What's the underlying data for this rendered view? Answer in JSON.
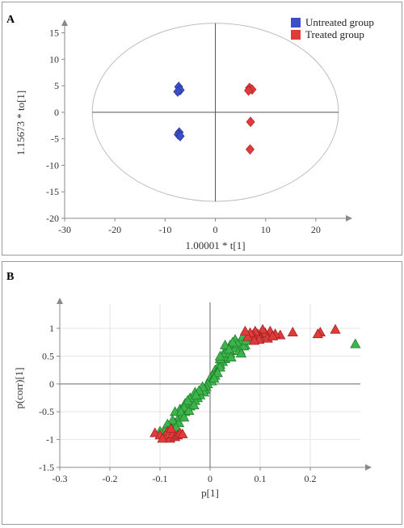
{
  "panels": [
    {
      "letter": "A",
      "chart_data": {
        "type": "scatter",
        "title": "",
        "xlabel": "1.00001 * t[1]",
        "ylabel": "1.15673 * to[1]",
        "xlim": [
          -30,
          25
        ],
        "ylim": [
          -20,
          16
        ],
        "xticks": [
          -30,
          -20,
          -10,
          0,
          10,
          20
        ],
        "yticks": [
          -20,
          -15,
          -10,
          -5,
          0,
          5,
          10,
          15
        ],
        "grid": false,
        "legend": "top-right",
        "ellipse": {
          "rx": 24.5,
          "ry": 16.8
        },
        "series": [
          {
            "name": "Untreated group",
            "color": "#3a4fc8",
            "marker": "diamond",
            "points": [
              [
                -7.3,
                4.8
              ],
              [
                -7.0,
                4.2
              ],
              [
                -7.5,
                3.9
              ],
              [
                -7.2,
                -3.8
              ],
              [
                -7.4,
                -4.2
              ],
              [
                -7.0,
                -4.5
              ]
            ]
          },
          {
            "name": "Treated group",
            "color": "#e03a3a",
            "marker": "diamond",
            "points": [
              [
                6.8,
                4.6
              ],
              [
                7.3,
                4.3
              ],
              [
                6.6,
                4.1
              ],
              [
                7.0,
                -1.8
              ],
              [
                6.9,
                -7.0
              ]
            ]
          }
        ]
      }
    },
    {
      "letter": "B",
      "chart_data": {
        "type": "scatter",
        "title": "",
        "xlabel": "p[1]",
        "ylabel": "p(corr)[1]",
        "xlim": [
          -0.3,
          0.3
        ],
        "ylim": [
          -1.5,
          1.35
        ],
        "xticks": [
          -0.3,
          -0.2,
          -0.1,
          0,
          0.1,
          0.2
        ],
        "yticks": [
          -1.5,
          -1,
          -0.5,
          0,
          0.5,
          1
        ],
        "grid": true,
        "series": [
          {
            "color": "#3cb44b",
            "marker": "triangle",
            "points": [
              [
                0.29,
                0.72
              ],
              [
                0.1,
                0.9
              ],
              [
                0.08,
                0.8
              ],
              [
                0.07,
                0.7
              ],
              [
                0.06,
                0.75
              ],
              [
                0.05,
                0.7
              ],
              [
                0.06,
                0.6
              ],
              [
                0.05,
                0.8
              ],
              [
                0.04,
                0.7
              ],
              [
                0.04,
                0.6
              ],
              [
                0.03,
                0.6
              ],
              [
                0.035,
                0.5
              ],
              [
                0.03,
                0.45
              ],
              [
                0.03,
                0.55
              ],
              [
                0.025,
                0.4
              ],
              [
                0.02,
                0.35
              ],
              [
                0.02,
                0.45
              ],
              [
                0.015,
                0.3
              ],
              [
                0.01,
                0.25
              ],
              [
                0.012,
                0.2
              ],
              [
                0.005,
                0.15
              ],
              [
                0.0,
                0.1
              ],
              [
                0.003,
                0.05
              ],
              [
                -0.005,
                0.0
              ],
              [
                -0.008,
                -0.05
              ],
              [
                -0.01,
                -0.1
              ],
              [
                -0.012,
                -0.15
              ],
              [
                -0.02,
                -0.2
              ],
              [
                -0.025,
                -0.25
              ],
              [
                -0.03,
                -0.3
              ],
              [
                -0.035,
                -0.35
              ],
              [
                -0.04,
                -0.4
              ],
              [
                -0.045,
                -0.45
              ],
              [
                -0.05,
                -0.5
              ],
              [
                -0.055,
                -0.55
              ],
              [
                -0.06,
                -0.6
              ],
              [
                -0.065,
                -0.65
              ],
              [
                -0.07,
                -0.7
              ],
              [
                -0.08,
                -0.75
              ],
              [
                -0.09,
                -0.8
              ],
              [
                -0.1,
                -0.85
              ],
              [
                -0.06,
                -0.45
              ],
              [
                -0.05,
                -0.35
              ],
              [
                -0.07,
                -0.5
              ],
              [
                -0.04,
                -0.25
              ],
              [
                -0.03,
                -0.15
              ],
              [
                0.02,
                0.3
              ],
              [
                0.01,
                0.15
              ],
              [
                0.04,
                0.55
              ],
              [
                0.05,
                0.65
              ],
              [
                0.055,
                0.72
              ],
              [
                0.065,
                0.85
              ],
              [
                0.03,
                0.7
              ],
              [
                0.02,
                0.5
              ],
              [
                0.045,
                0.75
              ],
              [
                0.038,
                0.62
              ],
              [
                -0.015,
                -0.05
              ],
              [
                -0.022,
                -0.12
              ],
              [
                -0.045,
                -0.3
              ],
              [
                -0.052,
                -0.42
              ],
              [
                -0.075,
                -0.65
              ],
              [
                -0.085,
                -0.72
              ],
              [
                -0.028,
                -0.2
              ],
              [
                -0.058,
                -0.5
              ],
              [
                0.015,
                0.2
              ],
              [
                0.008,
                0.1
              ],
              [
                0.042,
                0.48
              ],
              [
                0.058,
                0.6
              ],
              [
                0.067,
                0.68
              ],
              [
                0.072,
                0.78
              ],
              [
                0.062,
                0.55
              ],
              [
                -0.062,
                -0.7
              ],
              [
                -0.068,
                -0.78
              ],
              [
                -0.052,
                -0.6
              ],
              [
                -0.042,
                -0.48
              ],
              [
                -0.032,
                -0.38
              ]
            ]
          },
          {
            "color": "#e03a3a",
            "marker": "triangle",
            "points": [
              [
                0.25,
                0.98
              ],
              [
                0.22,
                0.93
              ],
              [
                0.215,
                0.9
              ],
              [
                0.165,
                0.93
              ],
              [
                0.14,
                0.88
              ],
              [
                0.13,
                0.9
              ],
              [
                0.12,
                0.95
              ],
              [
                0.11,
                0.92
              ],
              [
                0.105,
                0.98
              ],
              [
                0.1,
                0.85
              ],
              [
                0.095,
                0.9
              ],
              [
                0.09,
                0.95
              ],
              [
                0.085,
                0.88
              ],
              [
                0.08,
                0.92
              ],
              [
                0.075,
                0.85
              ],
              [
                0.07,
                0.95
              ],
              [
                0.115,
                0.82
              ],
              [
                0.125,
                0.86
              ],
              [
                0.098,
                0.8
              ],
              [
                0.088,
                0.78
              ],
              [
                -0.11,
                -0.88
              ],
              [
                -0.1,
                -0.92
              ],
              [
                -0.09,
                -0.95
              ],
              [
                -0.085,
                -0.85
              ],
              [
                -0.08,
                -0.98
              ],
              [
                -0.075,
                -0.9
              ],
              [
                -0.07,
                -0.95
              ],
              [
                -0.065,
                -0.92
              ],
              [
                -0.06,
                -0.88
              ],
              [
                -0.055,
                -0.9
              ],
              [
                -0.095,
                -0.98
              ],
              [
                -0.078,
                -0.8
              ]
            ]
          }
        ]
      }
    }
  ]
}
